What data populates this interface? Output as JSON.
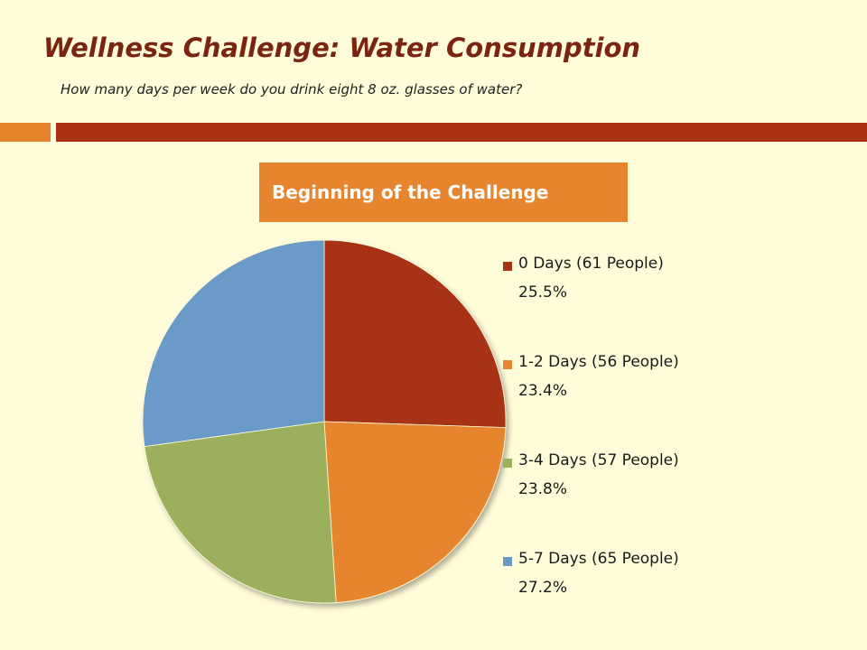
{
  "header": {
    "title": "Wellness Challenge: Water Consumption",
    "subtitle": "How many days per week do you drink eight 8 oz. glasses of water?"
  },
  "theme": {
    "accent_orange": "#e7852f",
    "accent_red": "#a83212",
    "background": "#fffcd9"
  },
  "chart_data": {
    "type": "pie",
    "title": "Beginning of the Challenge",
    "legend_position": "right",
    "slices": [
      {
        "label": "0 Days (61 People)",
        "percent_label": "25.5%",
        "value": 61,
        "percent": 25.5,
        "color": "#a83212"
      },
      {
        "label": "1-2 Days (56 People)",
        "percent_label": "23.4%",
        "value": 56,
        "percent": 23.4,
        "color": "#e7852f"
      },
      {
        "label": "3-4 Days (57 People)",
        "percent_label": "23.8%",
        "value": 57,
        "percent": 23.8,
        "color": "#9caf5b"
      },
      {
        "label": "5-7 Days (65 People)",
        "percent_label": "27.2%",
        "value": 65,
        "percent": 27.2,
        "color": "#6a9ac8"
      }
    ]
  }
}
